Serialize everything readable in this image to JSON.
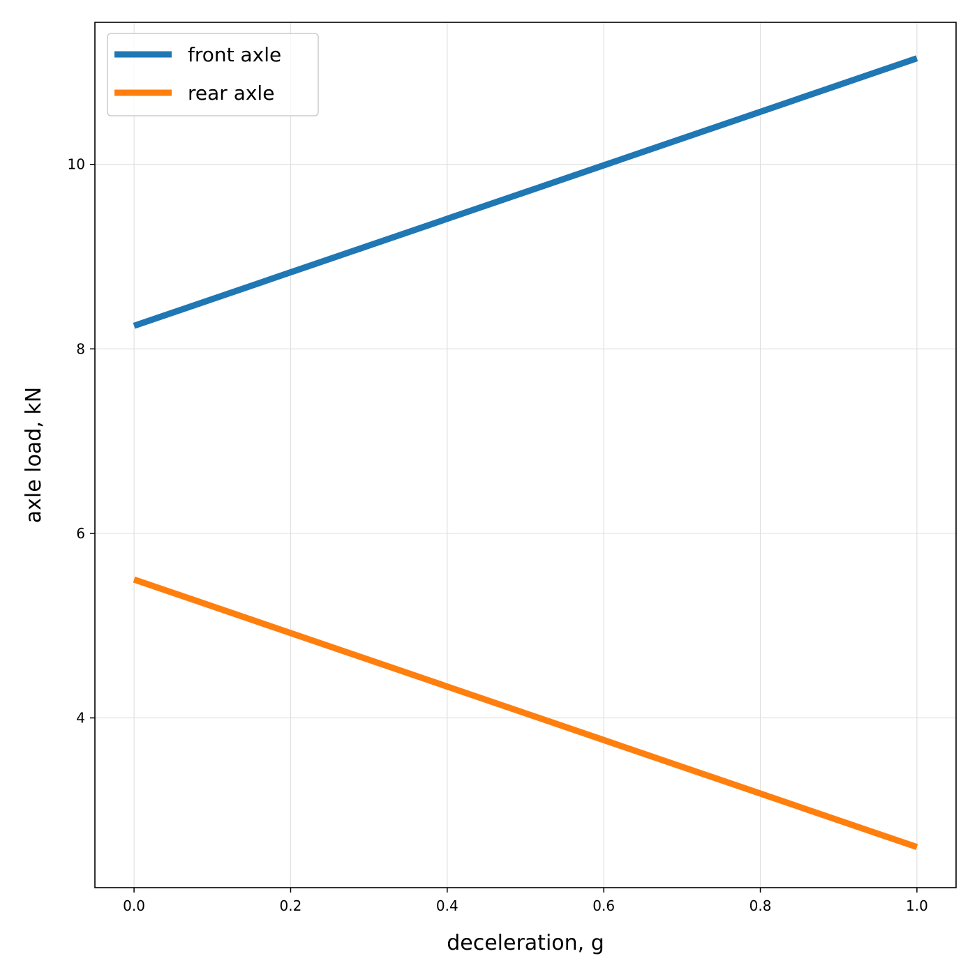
{
  "chart_data": {
    "type": "line",
    "title": "",
    "xlabel": "deceleration, g",
    "ylabel": "axle load, kN",
    "xlim": [
      -0.05,
      1.05
    ],
    "ylim": [
      2.16,
      11.54
    ],
    "xticks": [
      0.0,
      0.2,
      0.4,
      0.6,
      0.8,
      1.0
    ],
    "xtick_labels": [
      "0.0",
      "0.2",
      "0.4",
      "0.6",
      "0.8",
      "1.0"
    ],
    "yticks": [
      4,
      6,
      8,
      10
    ],
    "ytick_labels": [
      "4",
      "6",
      "8",
      "10"
    ],
    "grid": true,
    "legend_position": "upper-left",
    "series": [
      {
        "name": "front axle",
        "color": "#1f77b4",
        "x": [
          0.0,
          0.2,
          0.4,
          0.6,
          0.8,
          1.0
        ],
        "values": [
          8.25,
          8.83,
          9.41,
          9.99,
          10.57,
          11.15
        ]
      },
      {
        "name": "rear axle",
        "color": "#ff7f0e",
        "x": [
          0.0,
          0.2,
          0.4,
          0.6,
          0.8,
          1.0
        ],
        "values": [
          5.5,
          4.92,
          4.34,
          3.76,
          3.18,
          2.6
        ]
      }
    ]
  }
}
